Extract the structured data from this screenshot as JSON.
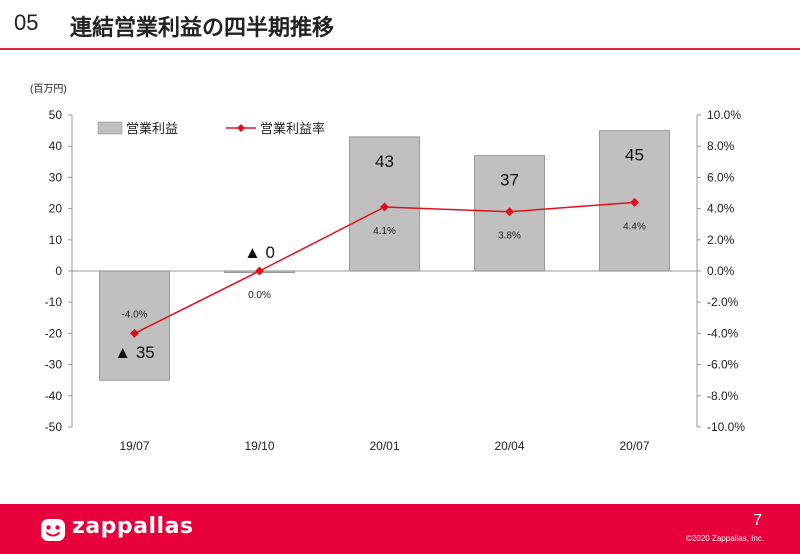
{
  "header": {
    "number": "05",
    "title": "連結営業利益の四半期推移"
  },
  "chart_data": {
    "type": "bar",
    "unit_label": "(百万円)",
    "categories": [
      "19/07",
      "19/10",
      "20/01",
      "20/04",
      "20/07"
    ],
    "series": [
      {
        "name": "営業利益",
        "kind": "bar",
        "axis": "left",
        "values": [
          -35,
          0,
          43,
          37,
          45
        ],
        "labels": [
          "▲ 35",
          "▲ 0",
          "43",
          "37",
          "45"
        ],
        "color": "#c0c0c0"
      },
      {
        "name": "営業利益率",
        "kind": "line",
        "axis": "right",
        "values": [
          -4.0,
          0.0,
          4.1,
          3.8,
          4.4
        ],
        "labels": [
          "-4.0%",
          "0.0%",
          "4.1%",
          "3.8%",
          "4.4%"
        ],
        "color": "#e0101e"
      }
    ],
    "y_left": {
      "min": -50,
      "max": 50,
      "step": 10,
      "ticks": [
        "-50",
        "-40",
        "-30",
        "-20",
        "-10",
        "0",
        "10",
        "20",
        "30",
        "40",
        "50"
      ]
    },
    "y_right": {
      "min": -10,
      "max": 10,
      "step": 2,
      "ticks": [
        "-10.0%",
        "-8.0%",
        "-6.0%",
        "-4.0%",
        "-2.0%",
        "0.0%",
        "2.0%",
        "4.0%",
        "6.0%",
        "8.0%",
        "10.0%"
      ]
    },
    "grid": false,
    "legend_position": "top-left"
  },
  "footer": {
    "brand": "zappallas",
    "page": "7",
    "copyright": "©2020 Zappallas, Inc."
  },
  "colors": {
    "accent": "#e8003d",
    "rule": "#e0243b"
  }
}
